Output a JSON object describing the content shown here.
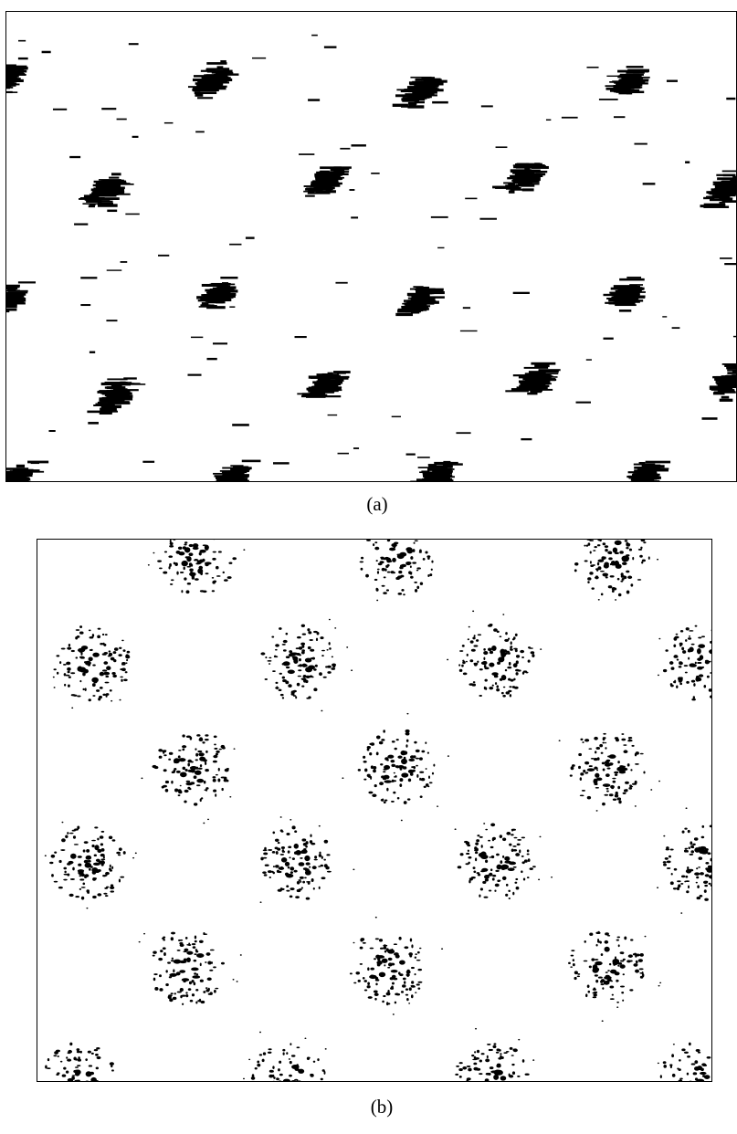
{
  "figure": {
    "panel_a": {
      "caption": "(a)",
      "description_kind": "sheared-lattice-horizontal-streaks",
      "mark_color": "#000000",
      "cluster_rows": 5,
      "clusters_per_row": 4
    },
    "panel_b": {
      "caption": "(b)",
      "description_kind": "hexagonal-lattice-dot-clusters",
      "mark_color": "#000000",
      "cluster_rows": 6,
      "clusters_per_row": 4
    }
  }
}
